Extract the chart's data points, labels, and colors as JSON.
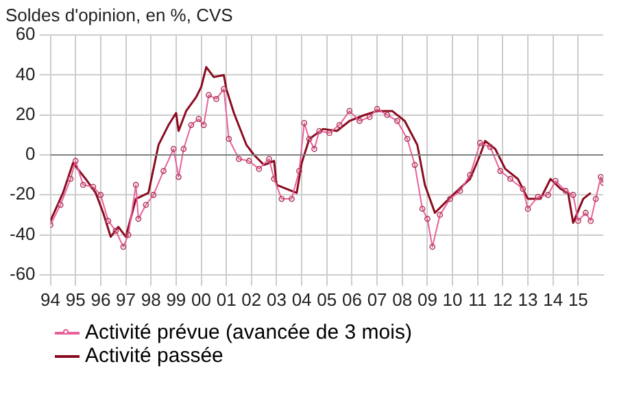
{
  "chart_data": {
    "type": "line",
    "title": "Soldes d'opinion, en %, CVS",
    "xlim": [
      1994,
      2016
    ],
    "xticks": [
      {
        "value": 1994,
        "label": "94"
      },
      {
        "value": 1995,
        "label": "95"
      },
      {
        "value": 1996,
        "label": "96"
      },
      {
        "value": 1997,
        "label": "97"
      },
      {
        "value": 1998,
        "label": "98"
      },
      {
        "value": 1999,
        "label": "99"
      },
      {
        "value": 2000,
        "label": "00"
      },
      {
        "value": 2001,
        "label": "01"
      },
      {
        "value": 2002,
        "label": "02"
      },
      {
        "value": 2003,
        "label": "03"
      },
      {
        "value": 2004,
        "label": "04"
      },
      {
        "value": 2005,
        "label": "05"
      },
      {
        "value": 2006,
        "label": "06"
      },
      {
        "value": 2007,
        "label": "07"
      },
      {
        "value": 2008,
        "label": "08"
      },
      {
        "value": 2009,
        "label": "09"
      },
      {
        "value": 2010,
        "label": "10"
      },
      {
        "value": 2011,
        "label": "11"
      },
      {
        "value": 2012,
        "label": "12"
      },
      {
        "value": 2013,
        "label": "13"
      },
      {
        "value": 2014,
        "label": "14"
      },
      {
        "value": 2015,
        "label": "15"
      }
    ],
    "ylim": [
      -60,
      60
    ],
    "yticks": [
      -60,
      -40,
      -20,
      0,
      20,
      40,
      60
    ],
    "grid": true,
    "legend": "bottom",
    "ref_lines": [
      {
        "axis": "y",
        "value": 0,
        "color": "#808080"
      }
    ],
    "series": [
      {
        "name": "Activité prévue (avancée de 3 mois)",
        "color": "#e8609a",
        "marker": "circle",
        "x": [
          1994.0,
          1994.4,
          1994.8,
          1995.0,
          1995.3,
          1995.7,
          1996.0,
          1996.3,
          1996.6,
          1996.9,
          1997.1,
          1997.4,
          1997.5,
          1997.8,
          1998.1,
          1998.5,
          1998.9,
          1999.1,
          1999.3,
          1999.6,
          1999.9,
          2000.1,
          2000.3,
          2000.6,
          2000.9,
          2001.1,
          2001.5,
          2001.9,
          2002.3,
          2002.7,
          2002.9,
          2003.2,
          2003.6,
          2003.9,
          2004.1,
          2004.3,
          2004.5,
          2004.7,
          2005.1,
          2005.5,
          2005.9,
          2006.3,
          2006.7,
          2007.0,
          2007.4,
          2007.8,
          2008.2,
          2008.5,
          2008.8,
          2009.0,
          2009.2,
          2009.5,
          2009.9,
          2010.3,
          2010.7,
          2011.1,
          2011.5,
          2011.9,
          2012.3,
          2012.8,
          2013.0,
          2013.4,
          2013.8,
          2014.1,
          2014.5,
          2014.8,
          2015.0,
          2015.3,
          2015.5,
          2015.7,
          2015.9,
          2016.0
        ],
        "values": [
          -35,
          -25,
          -12,
          -3,
          -15,
          -16,
          -20,
          -33,
          -38,
          -46,
          -40,
          -15,
          -32,
          -25,
          -20,
          -8,
          3,
          -11,
          3,
          15,
          18,
          15,
          30,
          28,
          33,
          8,
          -2,
          -3,
          -7,
          -2,
          -12,
          -22,
          -22,
          -8,
          16,
          8,
          3,
          12,
          11,
          15,
          22,
          17,
          19,
          23,
          20,
          17,
          8,
          -5,
          -27,
          -32,
          -46,
          -30,
          -22,
          -18,
          -10,
          6,
          4,
          -8,
          -12,
          -17,
          -27,
          -21,
          -20,
          -13,
          -18,
          -20,
          -33,
          -29,
          -33,
          -22,
          -11,
          -14
        ]
      },
      {
        "name": "Activité passée",
        "color": "#8b0a1e",
        "marker": "none",
        "x": [
          1994.0,
          1994.5,
          1994.9,
          1995.4,
          1995.8,
          1996.1,
          1996.4,
          1996.7,
          1997.0,
          1997.4,
          1997.9,
          1998.3,
          1998.7,
          1999.0,
          1999.1,
          1999.4,
          1999.8,
          2000.0,
          2000.2,
          2000.5,
          2000.9,
          2001.0,
          2001.3,
          2001.8,
          2002.1,
          2002.5,
          2002.9,
          2003.0,
          2003.4,
          2003.8,
          2004.0,
          2004.3,
          2004.85,
          2005.4,
          2005.9,
          2006.5,
          2007.0,
          2007.6,
          2008.1,
          2008.6,
          2008.9,
          2009.3,
          2009.7,
          2010.1,
          2010.7,
          2011.1,
          2011.3,
          2011.7,
          2012.1,
          2012.6,
          2013.0,
          2013.5,
          2013.9,
          2014.3,
          2014.6,
          2014.8,
          2015.2,
          2015.5
        ],
        "values": [
          -33,
          -19,
          -4,
          -12,
          -19,
          -29,
          -41,
          -36,
          -41,
          -22,
          -19,
          5,
          15,
          21,
          12,
          22,
          29,
          34,
          44,
          39,
          40,
          33,
          21,
          5,
          0,
          -5,
          -3,
          -15,
          -17,
          -19,
          -4,
          8,
          13,
          12,
          17,
          20,
          22,
          22,
          17,
          5,
          -15,
          -29,
          -24,
          -19,
          -12,
          0,
          7,
          3,
          -7,
          -12,
          -22,
          -22,
          -12,
          -17,
          -19,
          -34,
          -22,
          -19
        ]
      }
    ]
  }
}
